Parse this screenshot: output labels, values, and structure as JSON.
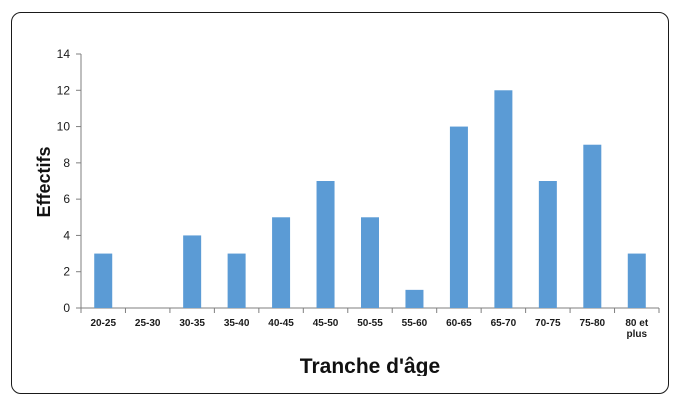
{
  "chart_data": {
    "type": "bar",
    "title": "",
    "xlabel": "Tranche d'âge",
    "ylabel": "Effectifs",
    "categories": [
      "20-25",
      "25-30",
      "30-35",
      "35-40",
      "40-45",
      "45-50",
      "50-55",
      "55-60",
      "60-65",
      "65-70",
      "70-75",
      "75-80",
      "80 et plus"
    ],
    "category_lines": [
      [
        "20-25"
      ],
      [
        "25-30"
      ],
      [
        "30-35"
      ],
      [
        "35-40"
      ],
      [
        "40-45"
      ],
      [
        "45-50"
      ],
      [
        "50-55"
      ],
      [
        "55-60"
      ],
      [
        "60-65"
      ],
      [
        "65-70"
      ],
      [
        "70-75"
      ],
      [
        "75-80"
      ],
      [
        "80 et",
        "plus"
      ]
    ],
    "values": [
      3,
      0,
      4,
      3,
      5,
      7,
      5,
      1,
      10,
      12,
      7,
      9,
      3
    ],
    "ylim": [
      0,
      14
    ],
    "yticks": [
      0,
      2,
      4,
      6,
      8,
      10,
      12,
      14
    ],
    "grid": false,
    "legend": "none",
    "bar_color": "#5b9bd5",
    "axis_color": "#7f7f7f"
  }
}
